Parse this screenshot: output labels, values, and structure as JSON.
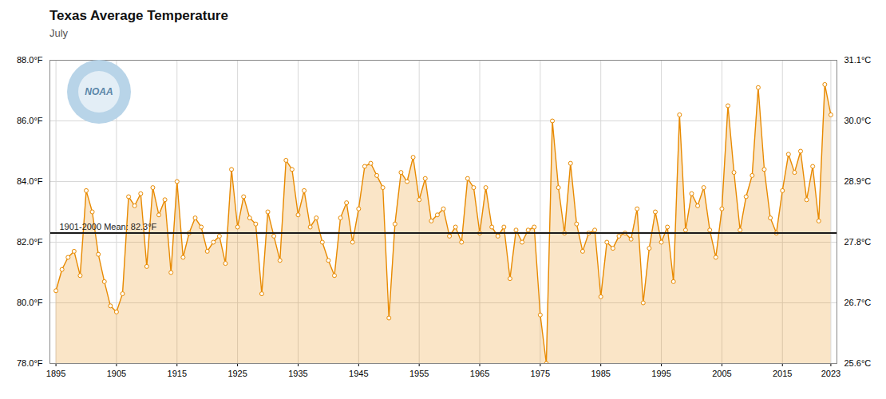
{
  "chart_data": {
    "type": "area",
    "title": "Texas Average Temperature",
    "subtitle": "July",
    "annotations": [
      "NOAA"
    ],
    "marker": "circle",
    "color": "#E88A00",
    "grid": true,
    "hline": {
      "y": 82.3,
      "label": "1901-2000 Mean: 82.3°F",
      "color": "#1a1a1a"
    },
    "xlim": [
      1894,
      2024
    ],
    "xticks": [
      1895,
      1905,
      1915,
      1925,
      1935,
      1945,
      1955,
      1965,
      1975,
      1985,
      1995,
      2005,
      2015,
      2023
    ],
    "ylim": [
      78.0,
      88.0
    ],
    "yticks": [
      {
        "value": 78.0,
        "label": "78.0°F"
      },
      {
        "value": 80.0,
        "label": "80.0°F"
      },
      {
        "value": 82.0,
        "label": "82.0°F"
      },
      {
        "value": 84.0,
        "label": "84.0°F"
      },
      {
        "value": 86.0,
        "label": "86.0°F"
      },
      {
        "value": 88.0,
        "label": "88.0°F"
      }
    ],
    "y2lim": [
      78.0,
      88.0
    ],
    "y2ticks": [
      {
        "value": 78.0,
        "label": "25.6°C"
      },
      {
        "value": 80.0,
        "label": "26.7°C"
      },
      {
        "value": 82.0,
        "label": "27.8°C"
      },
      {
        "value": 84.0,
        "label": "28.9°C"
      },
      {
        "value": 86.0,
        "label": "30.0°C"
      },
      {
        "value": 88.0,
        "label": "31.1°C"
      }
    ],
    "x": [
      1895,
      1896,
      1897,
      1898,
      1899,
      1900,
      1901,
      1902,
      1903,
      1904,
      1905,
      1906,
      1907,
      1908,
      1909,
      1910,
      1911,
      1912,
      1913,
      1914,
      1915,
      1916,
      1917,
      1918,
      1919,
      1920,
      1921,
      1922,
      1923,
      1924,
      1925,
      1926,
      1927,
      1928,
      1929,
      1930,
      1931,
      1932,
      1933,
      1934,
      1935,
      1936,
      1937,
      1938,
      1939,
      1940,
      1941,
      1942,
      1943,
      1944,
      1945,
      1946,
      1947,
      1948,
      1949,
      1950,
      1951,
      1952,
      1953,
      1954,
      1955,
      1956,
      1957,
      1958,
      1959,
      1960,
      1961,
      1962,
      1963,
      1964,
      1965,
      1966,
      1967,
      1968,
      1969,
      1970,
      1971,
      1972,
      1973,
      1974,
      1975,
      1976,
      1977,
      1978,
      1979,
      1980,
      1981,
      1982,
      1983,
      1984,
      1985,
      1986,
      1987,
      1988,
      1989,
      1990,
      1991,
      1992,
      1993,
      1994,
      1995,
      1996,
      1997,
      1998,
      1999,
      2000,
      2001,
      2002,
      2003,
      2004,
      2005,
      2006,
      2007,
      2008,
      2009,
      2010,
      2011,
      2012,
      2013,
      2014,
      2015,
      2016,
      2017,
      2018,
      2019,
      2020,
      2021,
      2022,
      2023
    ],
    "values": [
      80.4,
      81.1,
      81.5,
      81.7,
      80.9,
      83.7,
      83.0,
      81.6,
      80.7,
      79.9,
      79.7,
      80.3,
      83.5,
      83.2,
      83.6,
      81.2,
      83.8,
      82.9,
      83.4,
      81.0,
      84.0,
      81.5,
      82.3,
      82.8,
      82.5,
      81.7,
      82.0,
      82.2,
      81.3,
      84.4,
      82.5,
      83.5,
      82.8,
      82.6,
      80.3,
      83.0,
      82.2,
      81.4,
      84.7,
      84.4,
      82.9,
      83.7,
      82.5,
      82.8,
      82.0,
      81.4,
      80.9,
      82.8,
      83.3,
      82.0,
      83.1,
      84.5,
      84.6,
      84.2,
      83.8,
      79.5,
      82.6,
      84.3,
      84.0,
      84.8,
      83.4,
      84.1,
      82.7,
      82.9,
      83.1,
      82.2,
      82.5,
      82.0,
      84.1,
      83.8,
      82.3,
      83.8,
      82.5,
      82.2,
      82.5,
      80.8,
      82.4,
      82.0,
      82.4,
      82.5,
      79.6,
      78.0,
      86.0,
      83.8,
      82.3,
      84.6,
      82.6,
      81.7,
      82.3,
      82.4,
      80.2,
      82.0,
      81.8,
      82.2,
      82.3,
      82.1,
      83.1,
      80.0,
      81.8,
      83.0,
      82.0,
      82.5,
      80.7,
      86.2,
      82.4,
      83.6,
      83.2,
      83.8,
      82.4,
      81.5,
      83.1,
      86.5,
      84.3,
      82.4,
      83.5,
      84.2,
      87.1,
      84.4,
      82.8,
      82.3,
      83.7,
      84.9,
      84.3,
      85.0,
      83.4,
      84.5,
      82.7,
      87.2,
      86.2
    ]
  }
}
